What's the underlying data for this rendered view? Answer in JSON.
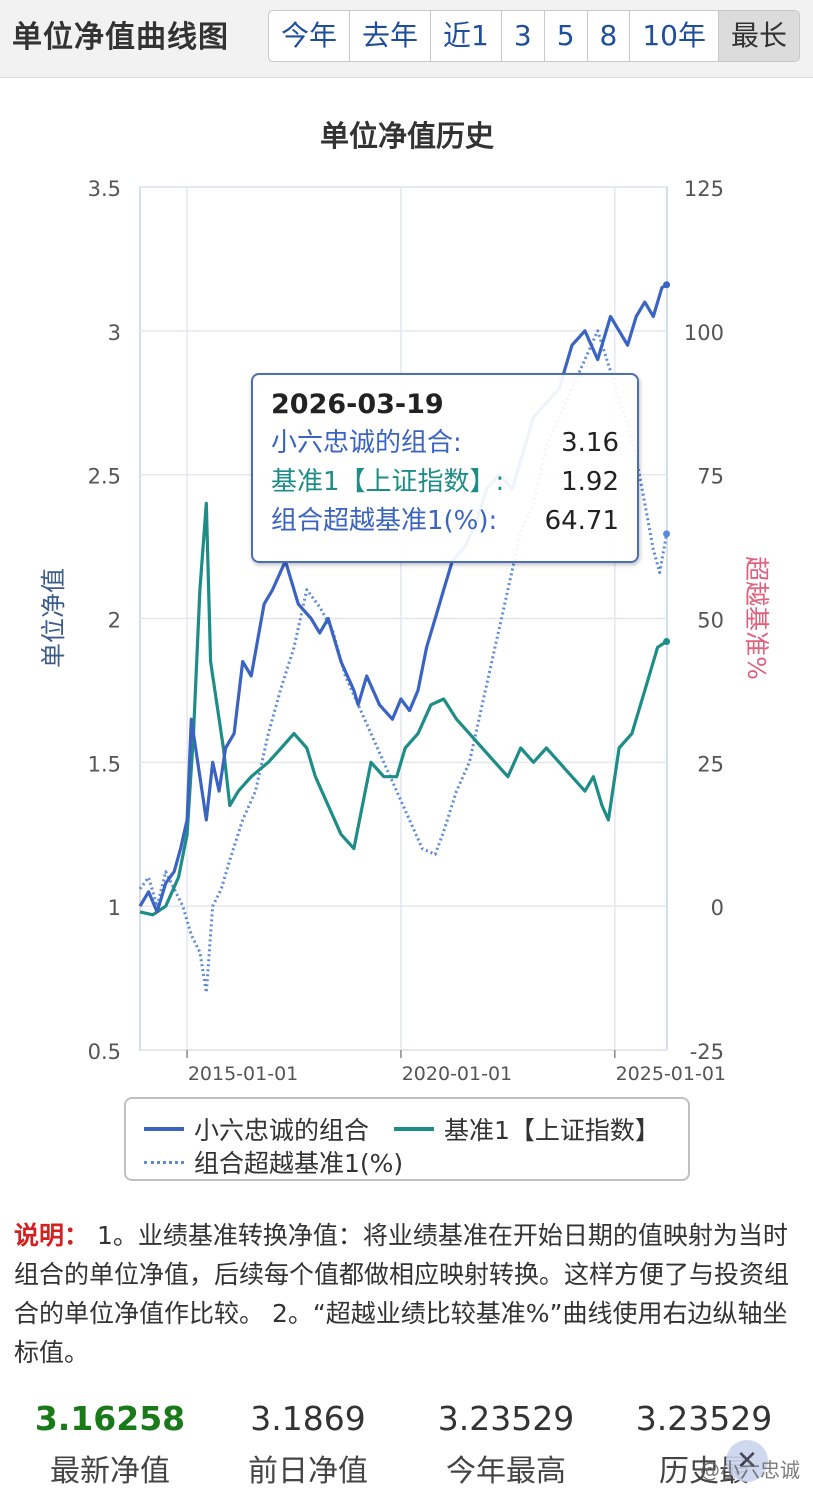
{
  "header": {
    "title": "单位净值曲线图",
    "ranges": [
      "今年",
      "去年",
      "近1",
      "3",
      "5",
      "8",
      "10年",
      "最长"
    ],
    "active_range": "最长"
  },
  "tooltip": {
    "date": "2026-03-19",
    "rows": [
      {
        "label": "小六忠诚的组合:",
        "value": "3.16",
        "color": "#3a63c2"
      },
      {
        "label": "基准1【上证指数】:",
        "value": "1.92",
        "color": "#1e8c87"
      },
      {
        "label": "组合超越基准1(%):",
        "value": "64.71",
        "color": "#3a63c2"
      }
    ]
  },
  "legend": {
    "items": [
      "小六忠诚的组合",
      "基准1【上证指数】",
      "组合超越基准1(%)"
    ]
  },
  "chart_data": {
    "type": "line",
    "title": "单位净值历史",
    "ylabel_left": "单位净值",
    "ylabel_right": "超越基准%",
    "ylim_left": [
      0.5,
      3.5
    ],
    "ylim_right": [
      -25,
      125
    ],
    "yticks_left": [
      "3.5",
      "3",
      "2.5",
      "2",
      "1.5",
      "1",
      "0.5"
    ],
    "yticks_right": [
      "125",
      "100",
      "75",
      "50",
      "25",
      "0",
      "-25"
    ],
    "xlim": [
      2013.9,
      2026.22
    ],
    "xticks": [
      {
        "label": "2015-01-01",
        "x": 2015.0
      },
      {
        "label": "2020-01-01",
        "x": 2020.0
      },
      {
        "label": "2025-01-01",
        "x": 2025.0
      }
    ],
    "grid": true,
    "legend_position": "bottom",
    "colors": {
      "portfolio": "#3a63c2",
      "benchmark": "#1e8c87",
      "excess": "#5d8ad6"
    },
    "series": [
      {
        "name": "小六忠诚的组合",
        "axis": "left",
        "style": "solid",
        "x": [
          2013.9,
          2014.1,
          2014.3,
          2014.5,
          2014.7,
          2014.85,
          2015.0,
          2015.1,
          2015.3,
          2015.45,
          2015.6,
          2015.75,
          2015.9,
          2016.1,
          2016.3,
          2016.5,
          2016.8,
          2017.0,
          2017.3,
          2017.6,
          2017.9,
          2018.1,
          2018.3,
          2018.6,
          2018.9,
          2019.0,
          2019.2,
          2019.5,
          2019.8,
          2020.0,
          2020.2,
          2020.4,
          2020.6,
          2020.8,
          2021.0,
          2021.2,
          2021.5,
          2021.8,
          2022.0,
          2022.3,
          2022.6,
          2022.9,
          2023.1,
          2023.4,
          2023.7,
          2024.0,
          2024.3,
          2024.6,
          2024.9,
          2025.1,
          2025.3,
          2025.5,
          2025.7,
          2025.9,
          2026.1,
          2026.21
        ],
        "values": [
          1.0,
          1.05,
          0.98,
          1.08,
          1.12,
          1.2,
          1.3,
          1.65,
          1.45,
          1.3,
          1.5,
          1.4,
          1.55,
          1.6,
          1.85,
          1.8,
          2.05,
          2.1,
          2.2,
          2.05,
          2.0,
          1.95,
          2.0,
          1.85,
          1.75,
          1.7,
          1.8,
          1.7,
          1.65,
          1.72,
          1.68,
          1.75,
          1.9,
          2.0,
          2.1,
          2.2,
          2.25,
          2.35,
          2.45,
          2.5,
          2.45,
          2.6,
          2.7,
          2.75,
          2.8,
          2.95,
          3.0,
          2.9,
          3.05,
          3.0,
          2.95,
          3.05,
          3.1,
          3.05,
          3.15,
          3.16
        ]
      },
      {
        "name": "基准1【上证指数】",
        "axis": "left",
        "style": "solid",
        "x": [
          2013.9,
          2014.2,
          2014.5,
          2014.8,
          2015.0,
          2015.15,
          2015.3,
          2015.45,
          2015.55,
          2015.7,
          2015.85,
          2016.0,
          2016.2,
          2016.5,
          2016.9,
          2017.2,
          2017.5,
          2017.8,
          2018.0,
          2018.3,
          2018.6,
          2018.9,
          2019.1,
          2019.3,
          2019.6,
          2019.9,
          2020.1,
          2020.4,
          2020.7,
          2021.0,
          2021.3,
          2021.6,
          2021.9,
          2022.2,
          2022.5,
          2022.8,
          2023.1,
          2023.4,
          2023.7,
          2024.0,
          2024.3,
          2024.5,
          2024.7,
          2024.85,
          2025.1,
          2025.4,
          2025.7,
          2026.0,
          2026.21
        ],
        "values": [
          0.98,
          0.97,
          1.0,
          1.1,
          1.25,
          1.6,
          2.1,
          2.4,
          1.85,
          1.7,
          1.55,
          1.35,
          1.4,
          1.45,
          1.5,
          1.55,
          1.6,
          1.55,
          1.45,
          1.35,
          1.25,
          1.2,
          1.35,
          1.5,
          1.45,
          1.45,
          1.55,
          1.6,
          1.7,
          1.72,
          1.65,
          1.6,
          1.55,
          1.5,
          1.45,
          1.55,
          1.5,
          1.55,
          1.5,
          1.45,
          1.4,
          1.45,
          1.35,
          1.3,
          1.55,
          1.6,
          1.75,
          1.9,
          1.92
        ]
      },
      {
        "name": "组合超越基准1(%)",
        "axis": "right",
        "style": "dotted",
        "x": [
          2013.9,
          2014.1,
          2014.3,
          2014.5,
          2014.7,
          2014.9,
          2015.1,
          2015.3,
          2015.45,
          2015.6,
          2015.8,
          2016.0,
          2016.3,
          2016.6,
          2016.9,
          2017.2,
          2017.5,
          2017.8,
          2018.1,
          2018.4,
          2018.7,
          2019.0,
          2019.3,
          2019.6,
          2019.9,
          2020.2,
          2020.5,
          2020.8,
          2021.0,
          2021.3,
          2021.6,
          2021.9,
          2022.2,
          2022.5,
          2022.8,
          2023.1,
          2023.4,
          2023.7,
          2024.0,
          2024.3,
          2024.6,
          2024.9,
          2025.1,
          2025.3,
          2025.5,
          2025.7,
          2025.9,
          2026.05,
          2026.21
        ],
        "values": [
          3,
          5,
          0,
          6,
          3,
          0,
          -5,
          -8,
          -15,
          0,
          3,
          8,
          15,
          20,
          30,
          38,
          45,
          55,
          52,
          48,
          40,
          35,
          30,
          25,
          20,
          15,
          10,
          9,
          13,
          20,
          25,
          35,
          45,
          55,
          65,
          70,
          80,
          85,
          90,
          95,
          100,
          93,
          88,
          84,
          78,
          70,
          62,
          58,
          64.71
        ]
      }
    ]
  },
  "note": {
    "label": "说明：",
    "text": "1。业绩基准转换净值：将业绩基准在开始日期的值映射为当时组合的单位净值，后续每个值都做相应映射转换。这样方便了与投资组合的单位净值作比较。 2。“超越业绩比较基准%”曲线使用右边纵轴坐标值。"
  },
  "stats": [
    {
      "value": "3.16258",
      "label": "最新净值"
    },
    {
      "value": "3.1869",
      "label": "前日净值"
    },
    {
      "value": "3.23529",
      "label": "今年最高"
    },
    {
      "value": "3.23529",
      "label": "历史最"
    }
  ],
  "watermark": {
    "text": "@小六忠诚"
  }
}
